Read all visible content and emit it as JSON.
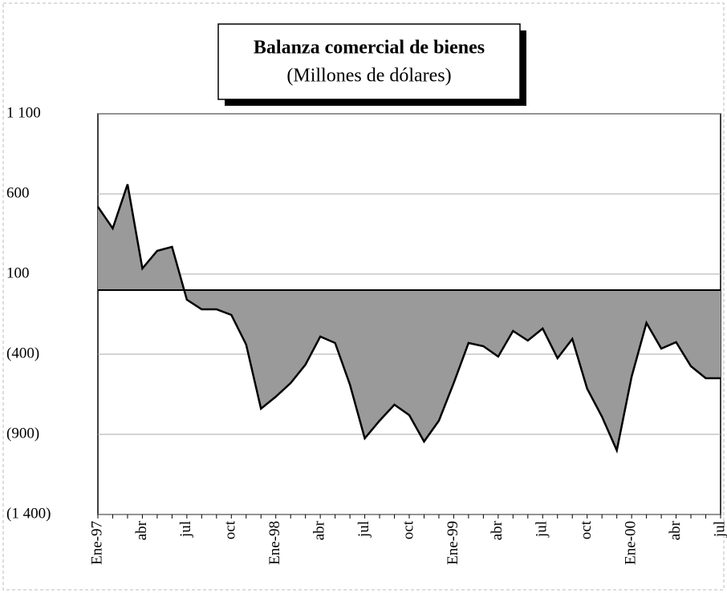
{
  "chart_data": {
    "type": "area",
    "title": "Balanza comercial de bienes",
    "subtitle": "(Millones de dólares)",
    "categories": [
      "Ene-97",
      null,
      null,
      "abr",
      null,
      null,
      "jul",
      null,
      null,
      "oct",
      null,
      null,
      "Ene-98",
      null,
      null,
      "abr",
      null,
      null,
      "jul",
      null,
      null,
      "oct",
      null,
      null,
      "Ene-99",
      null,
      null,
      "abr",
      null,
      null,
      "jul",
      null,
      null,
      "oct",
      null,
      null,
      "Ene-00",
      null,
      null,
      "abr",
      null,
      null,
      "jul"
    ],
    "values": [
      520,
      385,
      660,
      135,
      245,
      270,
      -60,
      -120,
      -120,
      -155,
      -340,
      -740,
      -665,
      -580,
      -465,
      -290,
      -330,
      -590,
      -925,
      -815,
      -715,
      -780,
      -945,
      -815,
      -580,
      -330,
      -350,
      -415,
      -255,
      -315,
      -240,
      -425,
      -305,
      -615,
      -790,
      -1000,
      -540,
      -205,
      -365,
      -325,
      -475,
      -550,
      -550
    ],
    "color": "#9a9a9a",
    "ylim": [
      -1400,
      1100
    ],
    "yticks": [
      {
        "value": -1400,
        "label": "(1 400)"
      },
      {
        "value": -900,
        "label": "(900)"
      },
      {
        "value": -400,
        "label": "(400)"
      },
      100,
      600,
      {
        "value": 1100,
        "label": "1 100"
      }
    ],
    "grid": true
  }
}
